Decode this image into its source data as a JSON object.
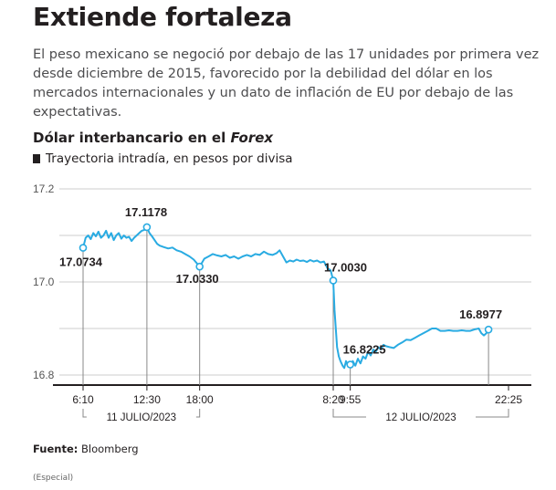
{
  "header": {
    "title": "Extiende fortaleza",
    "lede": "El peso mexicano se negoció por debajo de las 17 unidades por primera vez desde diciembre de 2015, favorecido por la debilidad del dólar en los mercados internacionales y un dato de inflación de EU por debajo de las expectativas.",
    "subtitle_main": "Dólar interbancario en el ",
    "subtitle_em": "Forex",
    "unit": "Trayectoria intradía, en pesos por divisa"
  },
  "footer": {
    "source_label": "Fuente:",
    "source_value": " Bloomberg",
    "credit": "(Especial)"
  },
  "colors": {
    "line": "#29abe2",
    "text": "#231f20",
    "grid": "#cccccc",
    "axis": "#231f20"
  },
  "chart_data": {
    "type": "line",
    "ylim": [
      16.8,
      17.2
    ],
    "yticks": [
      "17.2",
      "17.0",
      "16.8"
    ],
    "xticks": [
      "6:10",
      "12:30",
      "18:00",
      "8:20",
      "9:55",
      "22:25"
    ],
    "date_groups": [
      "11 JULIO/2023",
      "12 JULIO/2023"
    ],
    "grid": true,
    "annotations": [
      {
        "label": "17.0734",
        "x": 0,
        "y": 17.0734
      },
      {
        "label": "17.1178",
        "x": 15,
        "y": 17.1178
      },
      {
        "label": "17.0330",
        "x": 27.4,
        "y": 17.033
      },
      {
        "label": "17.0030",
        "x": 58.8,
        "y": 17.003
      },
      {
        "label": "16.8225",
        "x": 62.8,
        "y": 16.8225
      },
      {
        "label": "16.8977",
        "x": 95.3,
        "y": 16.8977
      }
    ],
    "series": [
      {
        "values": [
          [
            0,
            17.0734
          ],
          [
            0.6,
            17.095
          ],
          [
            1.2,
            17.1
          ],
          [
            1.8,
            17.092
          ],
          [
            2.4,
            17.105
          ],
          [
            3,
            17.098
          ],
          [
            3.6,
            17.108
          ],
          [
            4.2,
            17.095
          ],
          [
            4.8,
            17.1
          ],
          [
            5.4,
            17.11
          ],
          [
            6,
            17.095
          ],
          [
            6.6,
            17.105
          ],
          [
            7.2,
            17.09
          ],
          [
            7.8,
            17.1
          ],
          [
            8.4,
            17.105
          ],
          [
            9,
            17.093
          ],
          [
            9.6,
            17.1
          ],
          [
            10.2,
            17.095
          ],
          [
            10.8,
            17.097
          ],
          [
            11.4,
            17.088
          ],
          [
            12,
            17.095
          ],
          [
            12.6,
            17.1
          ],
          [
            13.2,
            17.105
          ],
          [
            13.8,
            17.11
          ],
          [
            14.4,
            17.112
          ],
          [
            15,
            17.1178
          ],
          [
            15.6,
            17.105
          ],
          [
            16.2,
            17.098
          ],
          [
            16.8,
            17.09
          ],
          [
            17.4,
            17.082
          ],
          [
            18,
            17.078
          ],
          [
            19,
            17.075
          ],
          [
            20,
            17.072
          ],
          [
            21,
            17.074
          ],
          [
            22,
            17.068
          ],
          [
            23,
            17.065
          ],
          [
            24,
            17.06
          ],
          [
            25,
            17.055
          ],
          [
            26,
            17.048
          ],
          [
            27.4,
            17.033
          ],
          [
            28.5,
            17.05
          ],
          [
            29.5,
            17.055
          ],
          [
            30.5,
            17.06
          ],
          [
            31.5,
            17.057
          ],
          [
            32.5,
            17.055
          ],
          [
            33.5,
            17.058
          ],
          [
            34.5,
            17.052
          ],
          [
            35.5,
            17.055
          ],
          [
            36.5,
            17.05
          ],
          [
            37.5,
            17.055
          ],
          [
            38.5,
            17.058
          ],
          [
            39.5,
            17.055
          ],
          [
            40.5,
            17.06
          ],
          [
            41.5,
            17.058
          ],
          [
            42.5,
            17.065
          ],
          [
            43.5,
            17.06
          ],
          [
            44.5,
            17.058
          ],
          [
            45.5,
            17.062
          ],
          [
            46.2,
            17.068
          ],
          [
            47,
            17.055
          ],
          [
            47.8,
            17.042
          ],
          [
            48.6,
            17.046
          ],
          [
            49.4,
            17.044
          ],
          [
            50.2,
            17.048
          ],
          [
            51,
            17.045
          ],
          [
            51.8,
            17.046
          ],
          [
            52.6,
            17.043
          ],
          [
            53.4,
            17.047
          ],
          [
            54.2,
            17.044
          ],
          [
            55,
            17.046
          ],
          [
            55.8,
            17.042
          ],
          [
            56.6,
            17.044
          ],
          [
            57.4,
            17.03
          ],
          [
            58.2,
            17.025
          ],
          [
            58.8,
            17.003
          ],
          [
            59.1,
            16.94
          ],
          [
            59.4,
            16.9
          ],
          [
            59.7,
            16.86
          ],
          [
            60.1,
            16.84
          ],
          [
            60.5,
            16.83
          ],
          [
            61,
            16.82
          ],
          [
            61.4,
            16.815
          ],
          [
            61.8,
            16.83
          ],
          [
            62.2,
            16.82
          ],
          [
            62.8,
            16.8225
          ],
          [
            63.4,
            16.83
          ],
          [
            64,
            16.82
          ],
          [
            64.6,
            16.835
          ],
          [
            65.2,
            16.825
          ],
          [
            65.8,
            16.84
          ],
          [
            66.4,
            16.835
          ],
          [
            67,
            16.85
          ],
          [
            67.6,
            16.842
          ],
          [
            68.2,
            16.855
          ],
          [
            68.8,
            16.85
          ],
          [
            69.4,
            16.86
          ],
          [
            70,
            16.855
          ],
          [
            70.6,
            16.865
          ],
          [
            71.2,
            16.862
          ],
          [
            72,
            16.86
          ],
          [
            73,
            16.858
          ],
          [
            74,
            16.865
          ],
          [
            75,
            16.87
          ],
          [
            76,
            16.876
          ],
          [
            77,
            16.875
          ],
          [
            78,
            16.88
          ],
          [
            79,
            16.885
          ],
          [
            80,
            16.89
          ],
          [
            81,
            16.895
          ],
          [
            82,
            16.9
          ],
          [
            83,
            16.9
          ],
          [
            84,
            16.895
          ],
          [
            85,
            16.895
          ],
          [
            86,
            16.896
          ],
          [
            87,
            16.895
          ],
          [
            88,
            16.895
          ],
          [
            89,
            16.896
          ],
          [
            90,
            16.895
          ],
          [
            91,
            16.895
          ],
          [
            92,
            16.898
          ],
          [
            93,
            16.9
          ],
          [
            93.6,
            16.89
          ],
          [
            94.2,
            16.885
          ],
          [
            94.8,
            16.89
          ],
          [
            95.3,
            16.8977
          ]
        ]
      }
    ]
  }
}
